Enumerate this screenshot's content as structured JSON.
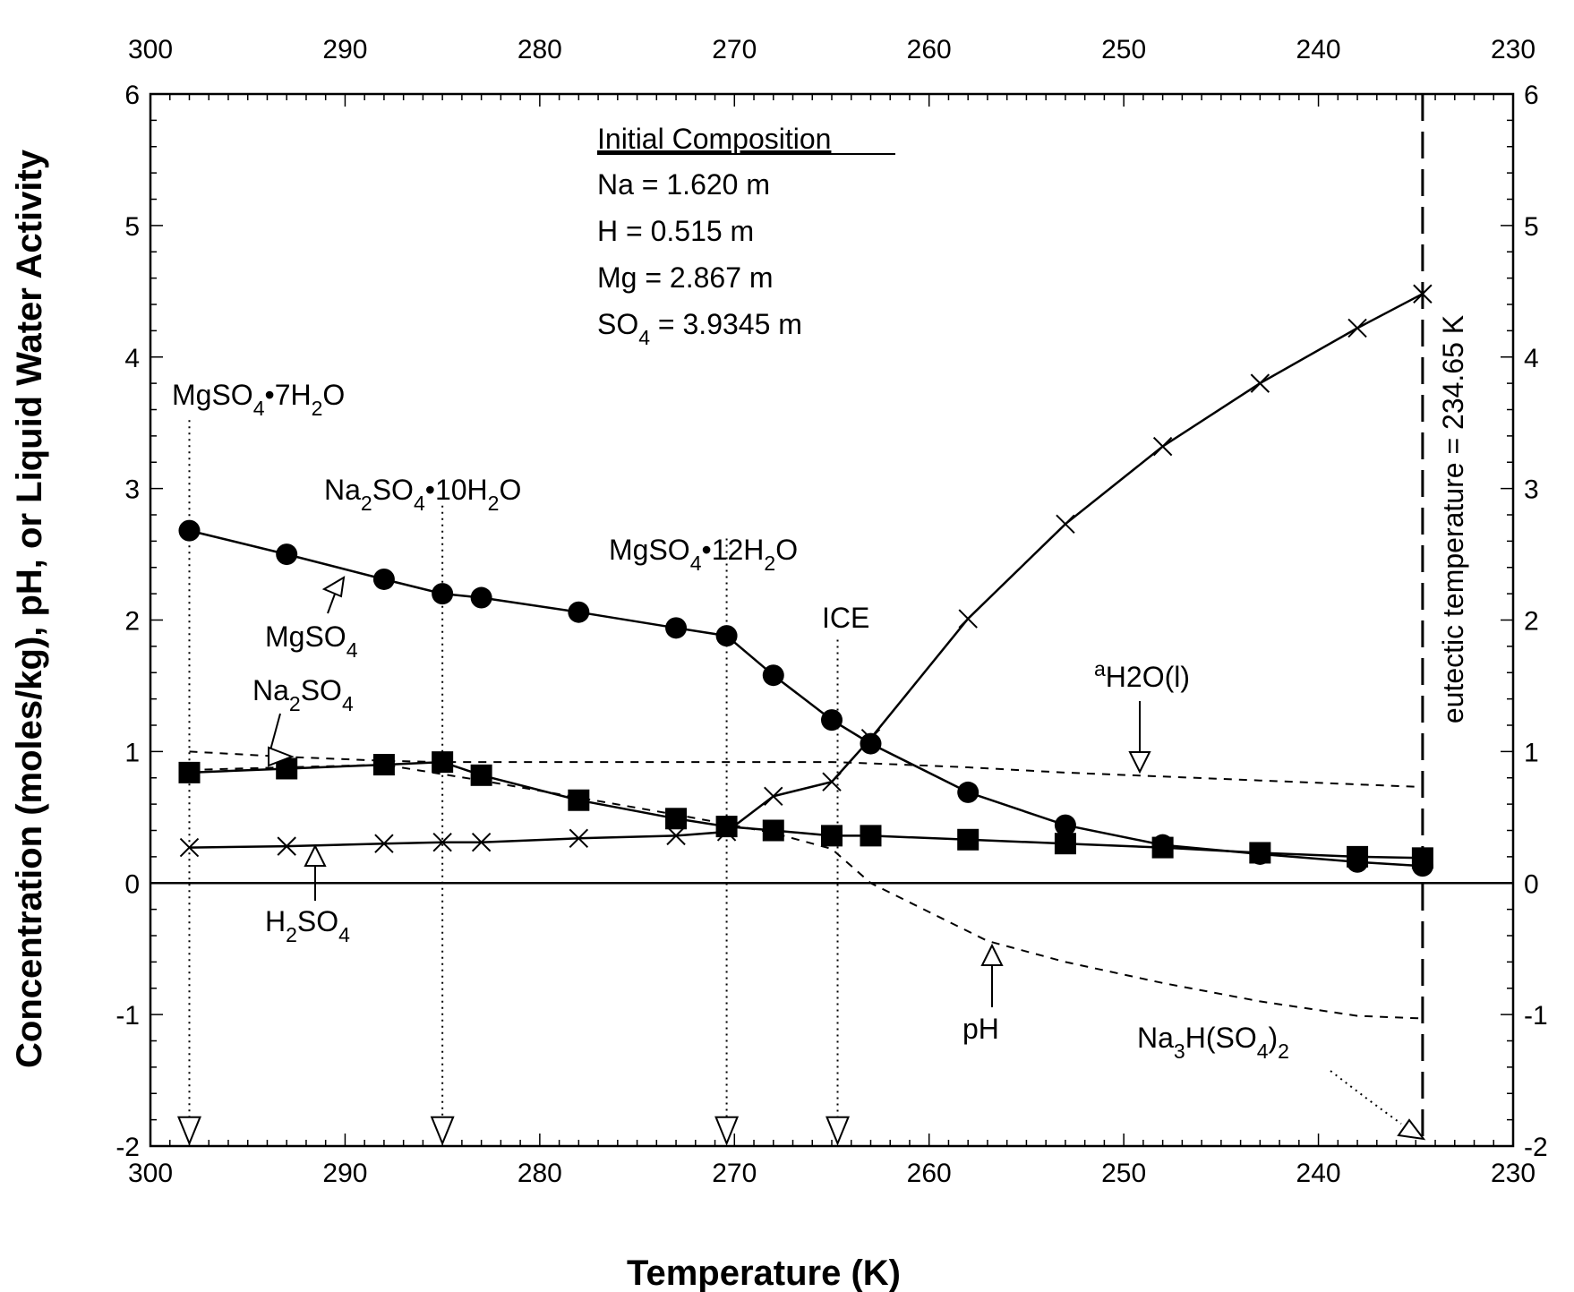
{
  "chart_data": {
    "type": "line",
    "title": "",
    "xlabel": "Temperature (K)",
    "ylabel": "Concentration (moles/kg), pH, or Liquid Water Activity",
    "xlim": [
      300,
      230
    ],
    "ylim": [
      -2,
      6
    ],
    "x_ticks": [
      "300",
      "290",
      "280",
      "270",
      "260",
      "250",
      "240",
      "230"
    ],
    "y_ticks": [
      "-2",
      "-1",
      "0",
      "1",
      "2",
      "3",
      "4",
      "5",
      "6"
    ],
    "grid": false,
    "series": [
      {
        "name": "MgSO4",
        "marker": "circle",
        "line": "solid",
        "x": [
          298,
          293,
          288,
          285,
          283,
          278,
          273,
          270.4,
          268,
          265,
          263,
          258,
          253,
          248,
          243,
          238,
          234.65
        ],
        "y": [
          2.68,
          2.5,
          2.31,
          2.2,
          2.17,
          2.06,
          1.94,
          1.88,
          1.58,
          1.24,
          1.06,
          0.69,
          0.44,
          0.29,
          0.22,
          0.16,
          0.13
        ]
      },
      {
        "name": "Na2SO4",
        "marker": "square",
        "line": "solid",
        "x": [
          298,
          293,
          288,
          285,
          283,
          278,
          273,
          270.4,
          268,
          265,
          263,
          258,
          253,
          248,
          243,
          238,
          234.65
        ],
        "y": [
          0.84,
          0.87,
          0.9,
          0.92,
          0.82,
          0.63,
          0.49,
          0.43,
          0.4,
          0.36,
          0.36,
          0.33,
          0.3,
          0.27,
          0.23,
          0.2,
          0.19
        ]
      },
      {
        "name": "H2SO4",
        "marker": "x",
        "line": "solid",
        "x": [
          298,
          293,
          288,
          285,
          283,
          278,
          273,
          270.4,
          268,
          265,
          263,
          258,
          253,
          248,
          243,
          238,
          234.65
        ],
        "y": [
          0.27,
          0.28,
          0.3,
          0.31,
          0.31,
          0.34,
          0.36,
          0.39,
          0.66,
          0.77,
          1.1,
          2.01,
          2.73,
          3.32,
          3.8,
          4.22,
          4.48
        ]
      },
      {
        "name": "aH2O(l)",
        "marker": "none",
        "line": "dashed",
        "x": [
          298,
          293,
          288,
          285,
          283,
          278,
          273,
          270.4,
          268,
          265,
          263,
          258,
          253,
          248,
          243,
          238,
          234.65
        ],
        "y": [
          1.0,
          0.96,
          0.93,
          0.92,
          0.92,
          0.92,
          0.92,
          0.92,
          0.92,
          0.92,
          0.91,
          0.88,
          0.84,
          0.81,
          0.78,
          0.75,
          0.73
        ]
      },
      {
        "name": "pH",
        "marker": "none",
        "line": "dashed",
        "x": [
          298,
          288,
          283,
          278,
          273,
          270.4,
          268,
          265,
          263,
          260,
          257,
          253,
          248,
          243,
          238,
          234.65
        ],
        "y": [
          0.86,
          0.9,
          0.78,
          0.65,
          0.52,
          0.45,
          0.38,
          0.26,
          0.0,
          -0.22,
          -0.44,
          -0.6,
          -0.76,
          -0.9,
          -1.01,
          -1.03
        ]
      }
    ],
    "precipitation_temperatures": [
      {
        "label": "MgSO4•7H2O",
        "x": 298
      },
      {
        "label": "Na2SO4•10H2O",
        "x": 285
      },
      {
        "label": "MgSO4•12H2O",
        "x": 270.4
      },
      {
        "label": "ICE",
        "x": 264.7
      },
      {
        "label": "Na3H(SO4)2",
        "x": 234.65
      }
    ],
    "eutectic": {
      "x": 234.65,
      "label": "eutectic temperature = 234.65 K"
    },
    "annotations": {
      "initial_composition": {
        "heading": "Initial Composition",
        "na": "Na = 1.620 m",
        "h": "H = 0.515 m",
        "mg": "Mg = 2.867 m",
        "so4_pre": "SO",
        "so4_sub": "4",
        "so4_post": " = 3.9345 m"
      },
      "phase_labels": {
        "mgso4_7h2o": {
          "p1": "MgSO",
          "s1": "4",
          "p2": "•7H",
          "s2": "2",
          "p3": "O"
        },
        "na2so4_10h2o": {
          "p1": "Na",
          "s1": "2",
          "p2": "SO",
          "s2": "4",
          "p3": "•10H",
          "s3": "2",
          "p4": "O"
        },
        "mgso4_12h2o": {
          "p1": "MgSO",
          "s1": "4",
          "p2": "•12H",
          "s2": "2",
          "p3": "O"
        },
        "ice": "ICE",
        "na3h_so4_2": {
          "p1": "Na",
          "s1": "3",
          "p2": "H(SO",
          "s2": "4",
          "p3": ")",
          "s3": "2"
        }
      },
      "series_labels": {
        "mgso4": {
          "p1": "MgSO",
          "s1": "4"
        },
        "na2so4": {
          "p1": "Na",
          "s1": "2",
          "p2": "SO",
          "s2": "4"
        },
        "h2so4": {
          "p1": "H",
          "s1": "2",
          "p2": "SO",
          "s2": "4"
        },
        "ah2o": {
          "pre": "a",
          "sub": "H2O(l)"
        },
        "ph": "pH"
      }
    }
  }
}
